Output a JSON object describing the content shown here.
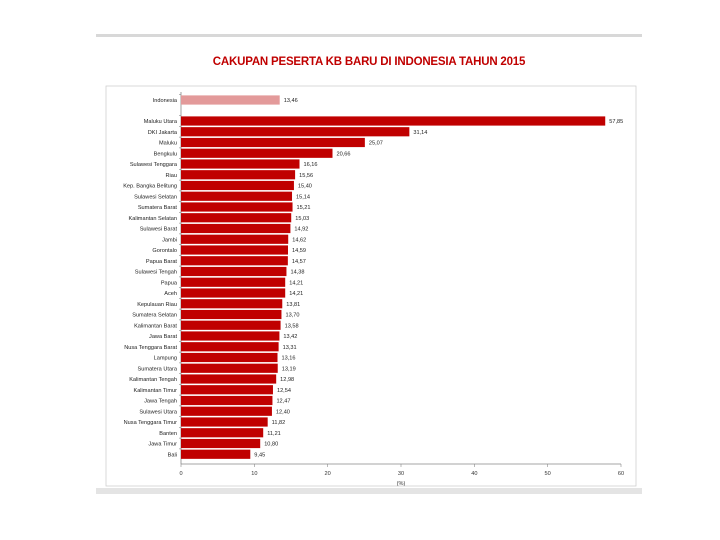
{
  "header": {
    "title": "CAKUPAN PESERTA KB BARU DI INDONESIA TAHUN 2015"
  },
  "chart_data": {
    "type": "bar",
    "orientation": "horizontal",
    "title": "CAKUPAN PESERTA KB BARU DI INDONESIA TAHUN 2015",
    "xlabel": "(%)",
    "xlim": [
      0,
      60
    ],
    "xticks": [
      "0",
      "10",
      "20",
      "30",
      "40",
      "50",
      "60"
    ],
    "colors": {
      "national": "#e39a9a",
      "province": "#c00000"
    },
    "national": {
      "name": "Indonesia",
      "value": 13.46,
      "label": "13,46"
    },
    "categories": [
      "Maluku Utara",
      "DKI Jakarta",
      "Maluku",
      "Bengkulu",
      "Sulawesi Tenggara",
      "Riau",
      "Kep. Bangka Belitung",
      "Sulawesi Selatan",
      "Sumatera Barat",
      "Kalimantan Selatan",
      "Sulawesi Barat",
      "Jambi",
      "Gorontalo",
      "Papua Barat",
      "Sulawesi Tengah",
      "Papua",
      "Aceh",
      "Kepulauan Riau",
      "Sumatera Selatan",
      "Kalimantan Barat",
      "Jawa Barat",
      "Nusa Tenggara Barat",
      "Lampung",
      "Sumatera Utara",
      "Kalimantan Tengah",
      "Kalimantan Timur",
      "Jawa Tengah",
      "Sulawesi Utara",
      "Nusa Tenggara Timur",
      "Banten",
      "Jawa Timur",
      "Bali"
    ],
    "values": [
      57.85,
      31.14,
      25.07,
      20.66,
      16.16,
      15.56,
      15.4,
      15.14,
      15.21,
      15.03,
      14.92,
      14.62,
      14.59,
      14.57,
      14.38,
      14.21,
      14.21,
      13.81,
      13.7,
      13.58,
      13.42,
      13.31,
      13.16,
      13.19,
      12.98,
      12.54,
      12.47,
      12.4,
      11.82,
      11.21,
      10.8,
      9.45
    ],
    "value_labels": [
      "57,85",
      "31,14",
      "25,07",
      "20,66",
      "16,16",
      "15,56",
      "15,40",
      "15,14",
      "15,21",
      "15,03",
      "14,92",
      "14,62",
      "14,59",
      "14,57",
      "14,38",
      "14,21",
      "14,21",
      "13,81",
      "13,70",
      "13,58",
      "13,42",
      "13,31",
      "13,16",
      "13,19",
      "12,98",
      "12,54",
      "12,47",
      "12,40",
      "11,82",
      "11,21",
      "10,80",
      "9,45"
    ],
    "grid": false,
    "legend": "none"
  }
}
